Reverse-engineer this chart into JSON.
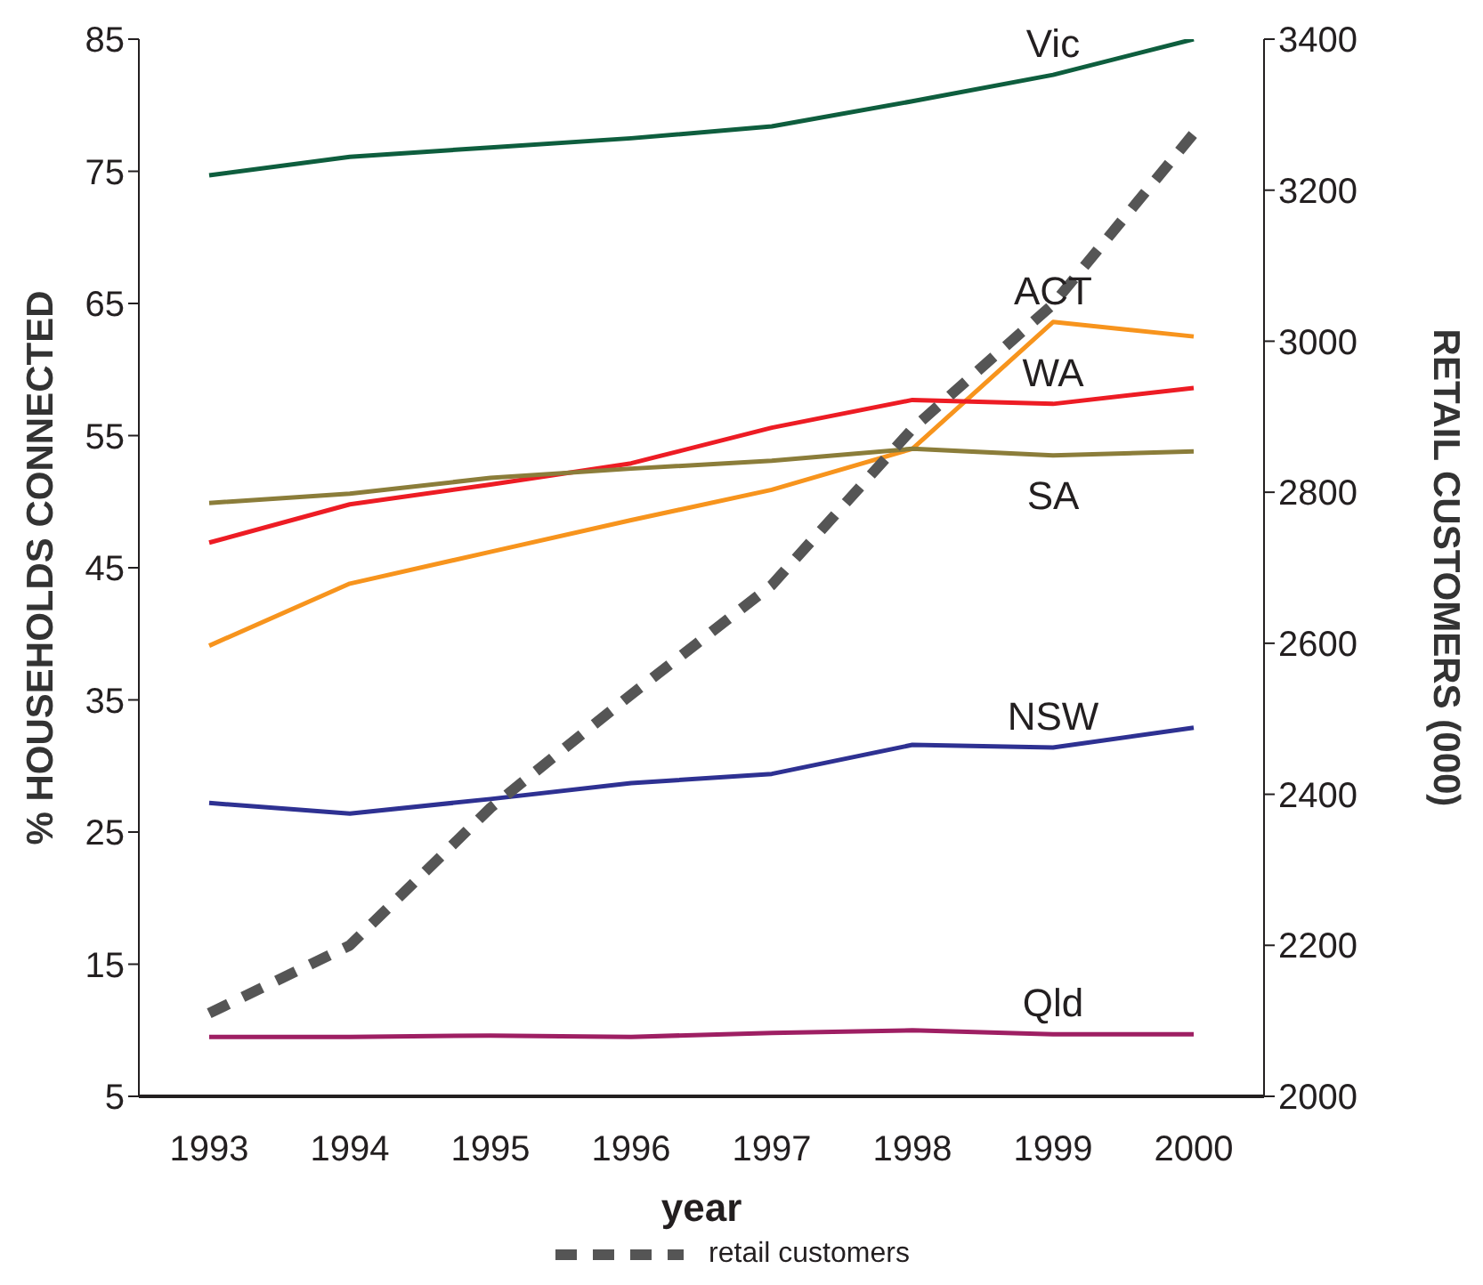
{
  "chart_data": {
    "type": "line",
    "xlabel": "year",
    "ylabel": "% HOUSEHOLDS CONNECTED",
    "y2label": "RETAIL CUSTOMERS (000)",
    "categories": [
      "1993",
      "1994",
      "1995",
      "1996",
      "1997",
      "1998",
      "1999",
      "2000"
    ],
    "ylim": [
      5,
      85
    ],
    "yticks": [
      5,
      15,
      25,
      35,
      45,
      55,
      65,
      75,
      85
    ],
    "y2lim": [
      2000,
      3400
    ],
    "y2ticks": [
      2000,
      2200,
      2400,
      2600,
      2800,
      3000,
      3200,
      3400
    ],
    "grid": false,
    "legend": "bottom",
    "marker": "none",
    "series": [
      {
        "name": "Vic",
        "color": "#0e5e3e",
        "values": [
          74.7,
          76.1,
          76.8,
          77.5,
          78.4,
          80.3,
          82.3,
          85
        ],
        "line_style": "solid"
      },
      {
        "name": "ACT",
        "color": "#f7941d",
        "values": [
          39.1,
          43.8,
          46.2,
          48.6,
          50.9,
          54.0,
          63.6,
          62.5
        ],
        "line_style": "solid"
      },
      {
        "name": "WA",
        "color": "#ed1c24",
        "values": [
          46.9,
          49.8,
          51.3,
          52.9,
          55.6,
          57.7,
          57.4,
          58.6
        ],
        "line_style": "solid"
      },
      {
        "name": "SA",
        "color": "#8b7d3a",
        "values": [
          49.9,
          50.6,
          51.8,
          52.5,
          53.1,
          54.0,
          53.5,
          53.8
        ],
        "line_style": "solid"
      },
      {
        "name": "NSW",
        "color": "#2e3192",
        "values": [
          27.2,
          26.4,
          27.5,
          28.7,
          29.4,
          31.6,
          31.4,
          32.9
        ],
        "line_style": "solid"
      },
      {
        "name": "Qld",
        "color": "#9e1f63",
        "values": [
          9.5,
          9.5,
          9.6,
          9.5,
          9.8,
          10.0,
          9.7,
          9.7
        ],
        "line_style": "solid"
      },
      {
        "name": "retail customers",
        "color": "#555555",
        "axis": "y2",
        "line_style": "dashed",
        "values": [
          2110,
          2200,
          2382,
          2532,
          2677,
          2884,
          3049,
          3275
        ]
      }
    ]
  }
}
